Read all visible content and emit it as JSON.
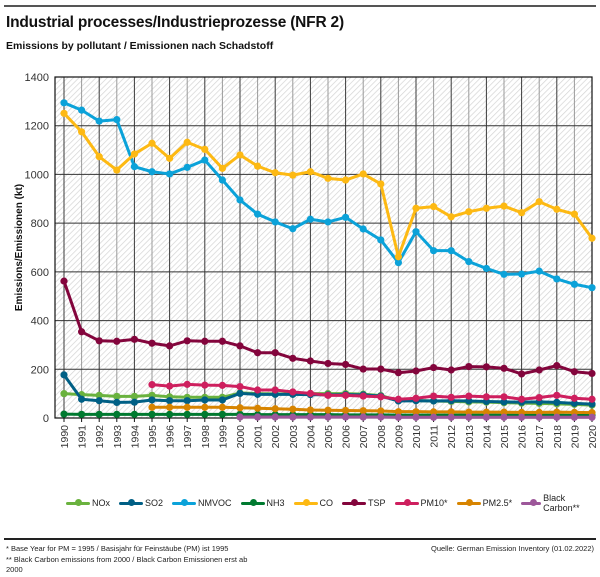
{
  "header": {
    "title": "Industrial processes/Industrieprozesse (NFR 2)",
    "subtitle": "Emissions by pollutant / Emissionen nach Schadstoff"
  },
  "footer": {
    "footnote_1": "* Base Year for PM = 1995 / Basisjahr für Feinstäube (PM) ist 1995",
    "footnote_2": "** Black Carbon emissions  from 2000 / Black Carbon Emissionen erst ab 2000",
    "source": "Quelle: German Emission Inventory (01.02.2022)"
  },
  "chart_data": {
    "type": "line",
    "title": "Industrial processes/Industrieprozesse (NFR 2)",
    "subtitle": "Emissions by pollutant / Emissionen nach Schadstoff",
    "xlabel": "",
    "ylabel": "Emissions/Emissionen (kt)",
    "ylim": [
      0,
      1400
    ],
    "yticks": [
      0,
      200,
      400,
      600,
      800,
      1000,
      1200,
      1400
    ],
    "grid": true,
    "legend_position": "bottom",
    "x": [
      1990,
      1991,
      1992,
      1993,
      1994,
      1995,
      1996,
      1997,
      1998,
      1999,
      2000,
      2001,
      2002,
      2003,
      2004,
      2005,
      2006,
      2007,
      2008,
      2009,
      2010,
      2011,
      2012,
      2013,
      2014,
      2015,
      2016,
      2017,
      2018,
      2019,
      2020
    ],
    "series": [
      {
        "name": "NOx",
        "color": "#6ab23e",
        "values": [
          100,
          96,
          93,
          89,
          89,
          93,
          87,
          85,
          85,
          85,
          103,
          100,
          99,
          98,
          100,
          100,
          100,
          98,
          92,
          72,
          72,
          70,
          68,
          66,
          65,
          63,
          61,
          60,
          58,
          56,
          53
        ]
      },
      {
        "name": "SO2",
        "color": "#005f85",
        "values": [
          177,
          77,
          71,
          64,
          65,
          74,
          71,
          71,
          74,
          74,
          101,
          97,
          97,
          97,
          96,
          95,
          96,
          95,
          90,
          70,
          71,
          70,
          71,
          70,
          68,
          66,
          65,
          66,
          64,
          60,
          57
        ]
      },
      {
        "name": "NMVOC",
        "color": "#0ba2d9",
        "values": [
          1294,
          1264,
          1219,
          1225,
          1032,
          1011,
          1002,
          1029,
          1059,
          977,
          895,
          837,
          805,
          777,
          816,
          805,
          824,
          776,
          731,
          638,
          765,
          687,
          687,
          642,
          614,
          590,
          591,
          603,
          571,
          549,
          535
        ]
      },
      {
        "name": "NH3",
        "color": "#007a30",
        "values": [
          16,
          15,
          15,
          15,
          15,
          15,
          15,
          15,
          15,
          15,
          15,
          14,
          14,
          14,
          14,
          14,
          13,
          13,
          13,
          12,
          12,
          12,
          12,
          12,
          12,
          12,
          12,
          12,
          12,
          11,
          11
        ]
      },
      {
        "name": "CO",
        "color": "#fdb913",
        "values": [
          1251,
          1175,
          1073,
          1018,
          1084,
          1128,
          1066,
          1132,
          1103,
          1025,
          1080,
          1034,
          1007,
          997,
          1011,
          984,
          977,
          1002,
          961,
          662,
          861,
          868,
          826,
          847,
          861,
          870,
          843,
          888,
          857,
          837,
          738
        ]
      },
      {
        "name": "TSP",
        "color": "#83053c",
        "values": [
          562,
          354,
          317,
          315,
          323,
          307,
          296,
          317,
          315,
          315,
          296,
          268,
          268,
          245,
          234,
          224,
          220,
          201,
          201,
          186,
          193,
          207,
          197,
          211,
          210,
          204,
          181,
          197,
          215,
          190,
          183
        ]
      },
      {
        "name": "PM10*",
        "color": "#ce1f5e",
        "values": [
          null,
          null,
          null,
          null,
          null,
          137,
          131,
          138,
          135,
          134,
          129,
          115,
          115,
          107,
          101,
          93,
          93,
          90,
          87,
          77,
          81,
          90,
          85,
          90,
          87,
          87,
          77,
          84,
          93,
          81,
          77
        ]
      },
      {
        "name": "PM2.5*",
        "color": "#d78400",
        "values": [
          null,
          null,
          null,
          null,
          null,
          44,
          44,
          44,
          44,
          44,
          42,
          40,
          38,
          36,
          33,
          32,
          31,
          30,
          29,
          26,
          26,
          25,
          25,
          24,
          24,
          24,
          23,
          23,
          24,
          23,
          22
        ]
      },
      {
        "name": "Black Carbon**",
        "color": "#9d579a",
        "values": [
          null,
          null,
          null,
          null,
          null,
          null,
          null,
          null,
          null,
          null,
          4,
          4,
          4,
          4,
          4,
          4,
          4,
          4,
          4,
          3,
          3,
          3,
          3,
          3,
          3,
          3,
          3,
          3,
          3,
          3,
          3
        ]
      }
    ]
  }
}
